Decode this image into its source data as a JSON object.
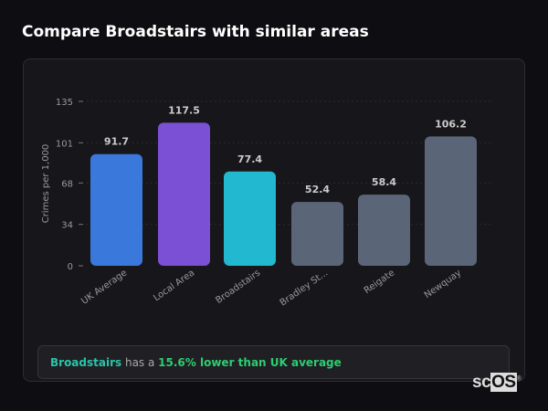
{
  "title": "Compare Broadstairs with similar areas",
  "chart_data": {
    "type": "bar",
    "categories": [
      "UK Average",
      "Local Area",
      "Broadstairs",
      "Bradley St...",
      "Reigate",
      "Newquay"
    ],
    "values": [
      91.7,
      117.5,
      77.4,
      52.4,
      58.4,
      106.2
    ],
    "value_labels": [
      "91.7",
      "117.5",
      "77.4",
      "52.4",
      "58.4",
      "106.2"
    ],
    "colors": [
      "#3b78dc",
      "#7b50d4",
      "#22b8cf",
      "#5a6678",
      "#5a6678",
      "#5a6678"
    ],
    "ylabel": "Crimes per 1,000",
    "yticks": [
      0,
      34,
      68,
      101,
      135
    ],
    "ylim": [
      0,
      135
    ],
    "grid": true
  },
  "summary": {
    "place": "Broadstairs",
    "middle": " has a ",
    "result": "15.6% lower than UK average"
  },
  "logo": {
    "a": "sc",
    "b": "OS",
    "mark": "®"
  }
}
